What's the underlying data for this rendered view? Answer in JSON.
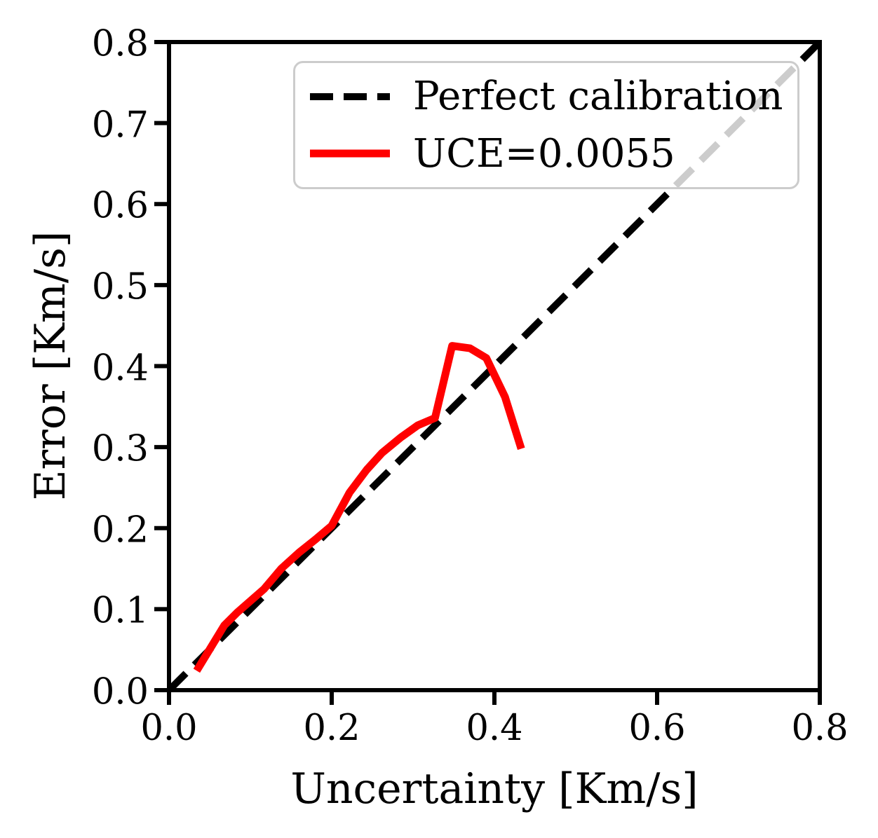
{
  "figure": {
    "background": "#ffffff",
    "axes_color": "#000000"
  },
  "chart_data": {
    "type": "line",
    "title": "",
    "xlabel": "Uncertainty [Km/s]",
    "ylabel": "Error [Km/s]",
    "xlim": [
      0.0,
      0.8
    ],
    "ylim": [
      0.0,
      0.8
    ],
    "x_ticks": [
      "0.0",
      "0.2",
      "0.4",
      "0.6",
      "0.8"
    ],
    "y_ticks": [
      "0.0",
      "0.1",
      "0.2",
      "0.3",
      "0.4",
      "0.5",
      "0.6",
      "0.7",
      "0.8"
    ],
    "grid": false,
    "legend": {
      "position": "upper right"
    },
    "series": [
      {
        "name": "Perfect calibration",
        "style": "dashed",
        "color": "#000000",
        "x": [
          0.0,
          0.8
        ],
        "y": [
          0.0,
          0.8
        ]
      },
      {
        "name": "UCE=0.0055",
        "style": "solid",
        "color": "#ff0000",
        "x": [
          0.034,
          0.068,
          0.084,
          0.117,
          0.138,
          0.16,
          0.18,
          0.2,
          0.222,
          0.243,
          0.262,
          0.285,
          0.306,
          0.327,
          0.348,
          0.37,
          0.39,
          0.413,
          0.433
        ],
        "y": [
          0.024,
          0.08,
          0.096,
          0.125,
          0.15,
          0.17,
          0.186,
          0.203,
          0.244,
          0.272,
          0.293,
          0.312,
          0.327,
          0.336,
          0.425,
          0.422,
          0.41,
          0.362,
          0.298
        ]
      }
    ]
  }
}
